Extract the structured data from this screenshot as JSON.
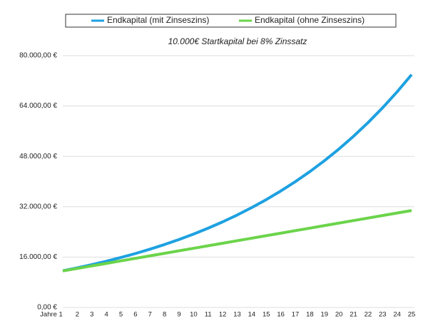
{
  "chart_data": {
    "type": "line",
    "subtitle": "10.000€ Startkapital bei 8% Zinssatz",
    "categories": [
      "Jahre 1",
      "2",
      "3",
      "4",
      "5",
      "6",
      "7",
      "8",
      "9",
      "10",
      "11",
      "12",
      "13",
      "14",
      "15",
      "16",
      "17",
      "18",
      "19",
      "20",
      "21",
      "22",
      "23",
      "24",
      "25"
    ],
    "series": [
      {
        "name": "Endkapital (mit Zinseszins)",
        "color": "#1ea1e1",
        "values": [
          11664,
          12597,
          13605,
          14693,
          15869,
          17138,
          18509,
          19990,
          21589,
          23316,
          25182,
          27196,
          29372,
          31722,
          34259,
          37000,
          39960,
          43157,
          46610,
          50338,
          54365,
          58715,
          63412,
          68485,
          73964
        ]
      },
      {
        "name": "Endkapital (ohne Zinseszins)",
        "color": "#6bd44a",
        "values": [
          11600,
          12400,
          13200,
          14000,
          14800,
          15600,
          16400,
          17200,
          18000,
          18800,
          19600,
          20400,
          21200,
          22000,
          22800,
          23600,
          24400,
          25200,
          26000,
          26800,
          27600,
          28400,
          29200,
          30000,
          30800
        ]
      }
    ],
    "ylim": [
      0,
      80000
    ],
    "yticks": [
      {
        "value": 0,
        "label": "0,00 €"
      },
      {
        "value": 16000,
        "label": "16.000,00 €"
      },
      {
        "value": 32000,
        "label": "32.000,00 €"
      },
      {
        "value": 48000,
        "label": "48.000,00 €"
      },
      {
        "value": 64000,
        "label": "64.000,00 €"
      },
      {
        "value": 80000,
        "label": "80.000,00 €"
      }
    ],
    "grid": true,
    "legend": "top"
  }
}
